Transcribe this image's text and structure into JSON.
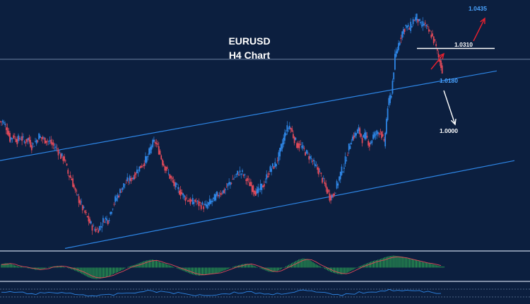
{
  "chart_data": {
    "type": "candlestick",
    "symbol": "EURUSD",
    "title": "EURUSD",
    "subtitle": "H4 Chart",
    "colors": {
      "background": "#0c1f3f",
      "bull": "#2e86e6",
      "bear": "#e04a5a",
      "channel": "#2e86e6",
      "level_white": "#ffffff",
      "level_blue": "#4aa3ff",
      "arrow_up": "#e8202e",
      "arrow_down": "#ffffff",
      "histogram": "#35c85a",
      "signal": "#e04a5a"
    },
    "price_series_close": [
      1.006,
      1.004,
      1.0,
      1.001,
      0.9995,
      1.0005,
      0.999,
      1.0,
      0.9975,
      0.999,
      1.001,
      1.0,
      0.9995,
      0.999,
      0.9975,
      0.9965,
      0.994,
      0.993,
      0.988,
      0.986,
      0.9815,
      0.979,
      0.976,
      0.9735,
      0.971,
      0.969,
      0.9685,
      0.97,
      0.9725,
      0.972,
      0.976,
      0.979,
      0.981,
      0.9835,
      0.985,
      0.986,
      0.987,
      0.989,
      0.9905,
      0.992,
      0.994,
      0.998,
      0.999,
      0.996,
      0.992,
      0.9895,
      0.987,
      0.9845,
      0.983,
      0.9815,
      0.98,
      0.979,
      0.978,
      0.9785,
      0.9775,
      0.977,
      0.9765,
      0.978,
      0.979,
      0.9805,
      0.9815,
      0.982,
      0.984,
      0.9855,
      0.987,
      0.9885,
      0.988,
      0.986,
      0.9845,
      0.9825,
      0.9815,
      0.983,
      0.9845,
      0.988,
      0.99,
      0.991,
      0.994,
      0.9985,
      1.003,
      1.0045,
      1.001,
      0.998,
      0.9975,
      0.996,
      0.9945,
      0.993,
      0.9905,
      0.989,
      0.986,
      0.983,
      0.98,
      0.9805,
      0.984,
      0.988,
      0.991,
      0.9955,
      1.0,
      1.0015,
      1.003,
      1.0,
      1.001,
      0.998,
      1.001,
      1.002,
      1.003,
      0.998,
      1.011,
      1.016,
      1.028,
      1.033,
      1.037,
      1.039,
      1.038,
      1.041,
      1.042,
      1.039,
      1.04,
      1.0375,
      1.036,
      1.033,
      1.028,
      1.024
    ],
    "levels": [
      {
        "label": "1.0435",
        "value": 1.0435,
        "color": "#4aa3ff"
      },
      {
        "label": "1.0310",
        "value": 1.031,
        "color": "#ffffff"
      },
      {
        "label": "1.0180",
        "value": 1.018,
        "color": "#4aa3ff"
      },
      {
        "label": "1.0000",
        "value": 1.0,
        "color": "#ffffff"
      }
    ],
    "horizontal_line_value": 1.0275,
    "channel": {
      "upper": {
        "start": 0.9925,
        "end": 1.0235
      },
      "lower": {
        "start": 0.969,
        "end": 0.992
      }
    },
    "oscillator": {
      "histogram": [
        0.3,
        0.4,
        0.35,
        0.2,
        0.1,
        0.05,
        -0.05,
        -0.1,
        -0.2,
        -0.15,
        -0.1,
        0.05,
        0.1,
        0.15,
        0.1,
        0.0,
        -0.1,
        -0.25,
        -0.4,
        -0.6,
        -0.8,
        -0.95,
        -1.0,
        -0.95,
        -0.85,
        -0.75,
        -0.55,
        -0.4,
        -0.2,
        0.0,
        0.15,
        0.25,
        0.4,
        0.55,
        0.65,
        0.7,
        0.6,
        0.45,
        0.35,
        0.2,
        0.05,
        -0.1,
        -0.25,
        -0.4,
        -0.55,
        -0.65,
        -0.7,
        -0.65,
        -0.6,
        -0.55,
        -0.5,
        -0.35,
        -0.2,
        -0.05,
        0.1,
        0.2,
        0.3,
        0.35,
        0.25,
        0.1,
        -0.05,
        -0.2,
        -0.35,
        -0.4,
        -0.3,
        -0.1,
        0.1,
        0.3,
        0.5,
        0.7,
        0.8,
        0.75,
        0.55,
        0.3,
        0.1,
        -0.1,
        -0.3,
        -0.45,
        -0.55,
        -0.6,
        -0.5,
        -0.3,
        -0.1,
        0.1,
        0.25,
        0.4,
        0.55,
        0.65,
        0.75,
        0.9,
        1.0,
        1.05,
        1.0,
        0.95,
        0.85,
        0.75,
        0.65,
        0.55,
        0.45,
        0.4,
        0.3,
        0.2,
        0.1
      ],
      "ylim": [
        -1.2,
        1.2
      ]
    },
    "xlim": [
      0,
      121
    ],
    "ylim": [
      0.962,
      1.048
    ]
  }
}
